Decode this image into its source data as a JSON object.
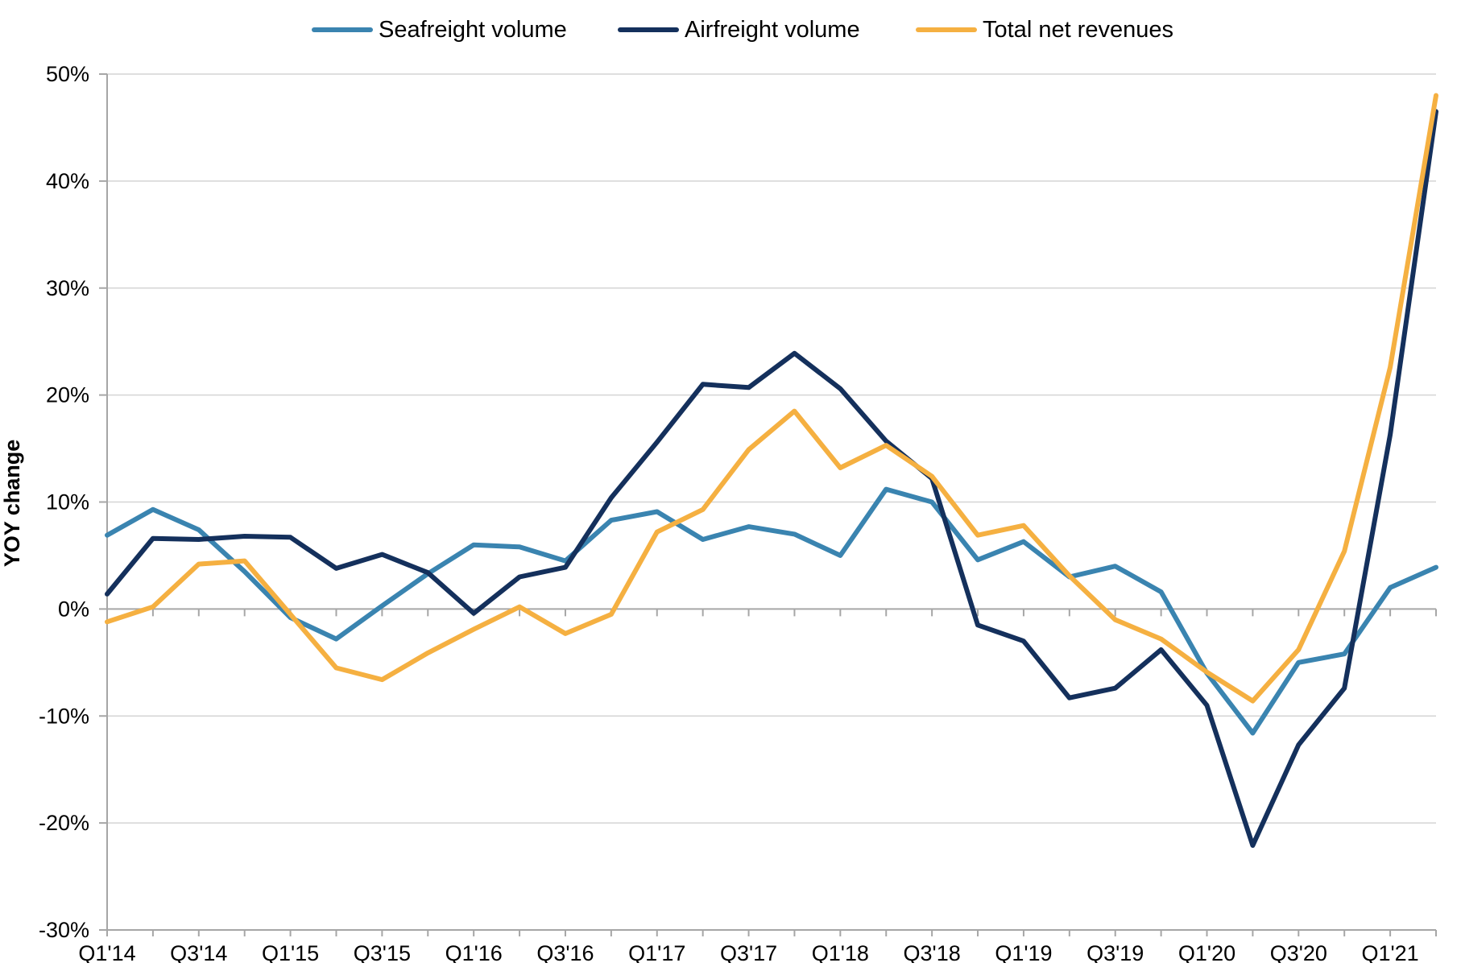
{
  "chart_data": {
    "type": "line",
    "title": "",
    "xlabel": "",
    "ylabel": "YOY change",
    "ylim": [
      -30,
      50
    ],
    "y_ticks": [
      50,
      40,
      30,
      20,
      10,
      0,
      -10,
      -20,
      -30
    ],
    "y_tick_labels": [
      "50%",
      "40%",
      "30%",
      "20%",
      "10%",
      "0%",
      "-10%",
      "-20%",
      "-30%"
    ],
    "grid": true,
    "legend_position": "top-center",
    "categories": [
      "Q1'14",
      "Q2'14",
      "Q3'14",
      "Q4'14",
      "Q1'15",
      "Q2'15",
      "Q3'15",
      "Q4'15",
      "Q1'16",
      "Q2'16",
      "Q3'16",
      "Q4'16",
      "Q1'17",
      "Q2'17",
      "Q3'17",
      "Q4'17",
      "Q1'18",
      "Q2'18",
      "Q3'18",
      "Q4'18",
      "Q1'19",
      "Q2'19",
      "Q3'19",
      "Q4'19",
      "Q1'20",
      "Q2'20",
      "Q3'20",
      "Q4'20",
      "Q1'21",
      "Q2'21"
    ],
    "x_tick_labels": [
      "Q1'14",
      "Q3'14",
      "Q1'15",
      "Q3'15",
      "Q1'16",
      "Q3'16",
      "Q1'17",
      "Q3'17",
      "Q1'18",
      "Q3'18",
      "Q1'19",
      "Q3'19",
      "Q1'20",
      "Q3'20",
      "Q1'21"
    ],
    "series": [
      {
        "name": "Seafreight volume",
        "color": "#3a84b0",
        "values": [
          6.9,
          9.3,
          7.4,
          3.5,
          -0.8,
          -2.8,
          0.3,
          3.3,
          6.0,
          5.8,
          4.5,
          8.3,
          9.1,
          6.5,
          7.7,
          7.0,
          5.0,
          11.2,
          10.0,
          4.6,
          6.3,
          3.0,
          4.0,
          1.6,
          -6.0,
          -11.6,
          -5.0,
          -4.2,
          2.0,
          3.9
        ]
      },
      {
        "name": "Airfreight volume",
        "color": "#14305c",
        "values": [
          1.4,
          6.6,
          6.5,
          6.8,
          6.7,
          3.8,
          5.1,
          3.4,
          -0.4,
          3.0,
          3.9,
          10.4,
          15.6,
          21.0,
          20.7,
          23.9,
          20.6,
          15.7,
          12.2,
          -1.5,
          -3.0,
          -8.3,
          -7.4,
          -3.8,
          -9.0,
          -22.1,
          -12.7,
          -7.4,
          16.3,
          46.5
        ]
      },
      {
        "name": "Total net revenues",
        "color": "#f5b041",
        "values": [
          -1.2,
          0.2,
          4.2,
          4.5,
          -0.5,
          -5.5,
          -6.6,
          -4.1,
          -1.9,
          0.2,
          -2.3,
          -0.5,
          7.2,
          9.3,
          14.9,
          18.5,
          13.2,
          15.3,
          12.4,
          6.9,
          7.8,
          3.1,
          -1.0,
          -2.8,
          -5.9,
          -8.6,
          -3.8,
          5.4,
          22.6,
          48.0
        ]
      }
    ]
  }
}
